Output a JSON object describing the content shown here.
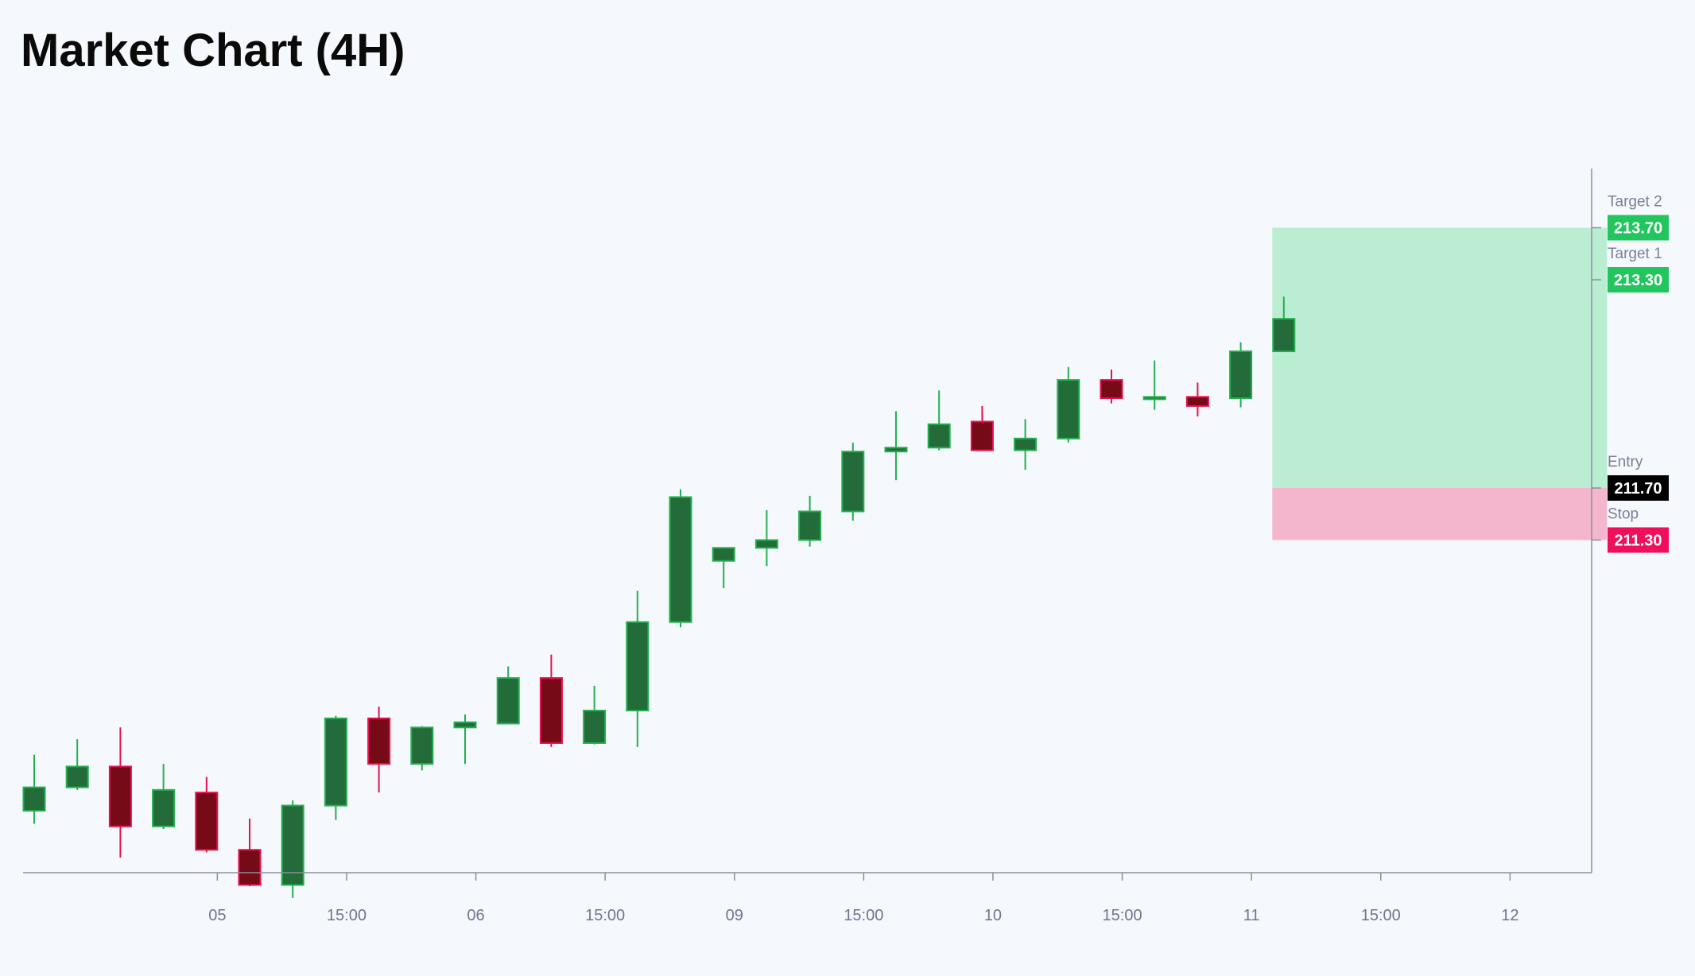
{
  "title": "Market Chart (4H)",
  "chart_data": {
    "type": "candlestick",
    "title": "Market Chart (4H)",
    "interval": "4H",
    "x_ticks": [
      {
        "label": "05",
        "bar": 4.25
      },
      {
        "label": "15:00",
        "bar": 7.25
      },
      {
        "label": "06",
        "bar": 10.25
      },
      {
        "label": "15:00",
        "bar": 13.25
      },
      {
        "label": "09",
        "bar": 16.25
      },
      {
        "label": "15:00",
        "bar": 19.25
      },
      {
        "label": "10",
        "bar": 22.25
      },
      {
        "label": "15:00",
        "bar": 25.25
      },
      {
        "label": "11",
        "bar": 28.25
      },
      {
        "label": "15:00",
        "bar": 31.25
      },
      {
        "label": "12",
        "bar": 34.25
      }
    ],
    "ylim": [
      209.0,
      214.5
    ],
    "candles": [
      {
        "open": 209.22,
        "high": 209.65,
        "low": 209.12,
        "close": 209.4
      },
      {
        "open": 209.4,
        "high": 209.77,
        "low": 209.38,
        "close": 209.56
      },
      {
        "open": 209.56,
        "high": 209.86,
        "low": 208.86,
        "close": 209.1
      },
      {
        "open": 209.1,
        "high": 209.58,
        "low": 209.08,
        "close": 209.38
      },
      {
        "open": 209.36,
        "high": 209.48,
        "low": 208.9,
        "close": 208.92
      },
      {
        "open": 208.92,
        "high": 209.16,
        "low": 208.64,
        "close": 208.65
      },
      {
        "open": 208.65,
        "high": 209.3,
        "low": 208.55,
        "close": 209.26
      },
      {
        "open": 209.26,
        "high": 209.95,
        "low": 209.15,
        "close": 209.93
      },
      {
        "open": 209.93,
        "high": 210.02,
        "low": 209.36,
        "close": 209.58
      },
      {
        "open": 209.58,
        "high": 209.87,
        "low": 209.53,
        "close": 209.86
      },
      {
        "open": 209.86,
        "high": 209.96,
        "low": 209.58,
        "close": 209.9
      },
      {
        "open": 209.89,
        "high": 210.33,
        "low": 209.89,
        "close": 210.24
      },
      {
        "open": 210.24,
        "high": 210.42,
        "low": 209.71,
        "close": 209.74
      },
      {
        "open": 209.74,
        "high": 210.18,
        "low": 209.73,
        "close": 209.99
      },
      {
        "open": 209.99,
        "high": 210.91,
        "low": 209.71,
        "close": 210.67
      },
      {
        "open": 210.67,
        "high": 211.69,
        "low": 210.63,
        "close": 211.63
      },
      {
        "open": 211.14,
        "high": 211.24,
        "low": 210.93,
        "close": 211.24
      },
      {
        "open": 211.24,
        "high": 211.53,
        "low": 211.1,
        "close": 211.3
      },
      {
        "open": 211.3,
        "high": 211.64,
        "low": 211.25,
        "close": 211.52
      },
      {
        "open": 211.52,
        "high": 212.05,
        "low": 211.45,
        "close": 211.98
      },
      {
        "open": 211.98,
        "high": 212.29,
        "low": 211.76,
        "close": 212.01
      },
      {
        "open": 212.01,
        "high": 212.45,
        "low": 211.99,
        "close": 212.19
      },
      {
        "open": 212.21,
        "high": 212.33,
        "low": 211.99,
        "close": 211.99
      },
      {
        "open": 211.99,
        "high": 212.23,
        "low": 211.84,
        "close": 212.08
      },
      {
        "open": 212.08,
        "high": 212.63,
        "low": 212.05,
        "close": 212.53
      },
      {
        "open": 212.53,
        "high": 212.61,
        "low": 212.35,
        "close": 212.39
      },
      {
        "open": 212.4,
        "high": 212.68,
        "low": 212.3,
        "close": 212.4
      },
      {
        "open": 212.4,
        "high": 212.51,
        "low": 212.25,
        "close": 212.33
      },
      {
        "open": 212.39,
        "high": 212.82,
        "low": 212.32,
        "close": 212.75
      },
      {
        "open": 212.75,
        "high": 213.17,
        "low": 212.75,
        "close": 213.0
      }
    ],
    "position": {
      "entry": 211.7,
      "stop": 211.3,
      "target_1": 213.3,
      "target_2": 213.7,
      "start_bar": 29,
      "end_bar": 36.5
    },
    "levels": [
      {
        "name": "Target 2",
        "value": "213.70",
        "price": 213.7,
        "color": "#22c55e"
      },
      {
        "name": "Target 1",
        "value": "213.30",
        "price": 213.3,
        "color": "#22c55e"
      },
      {
        "name": "Entry",
        "value": "211.70",
        "price": 211.7,
        "color": "#000000"
      },
      {
        "name": "Stop",
        "value": "211.30",
        "price": 211.3,
        "color": "#ef0f5a"
      }
    ],
    "colors": {
      "up_body": "#236b38",
      "up_border": "#23b04e",
      "down_body": "#770a17",
      "down_border": "#e8104e",
      "profit_zone": "#bbedd3",
      "loss_zone": "#f4b6cc",
      "axis": "#8c8f9a"
    }
  }
}
